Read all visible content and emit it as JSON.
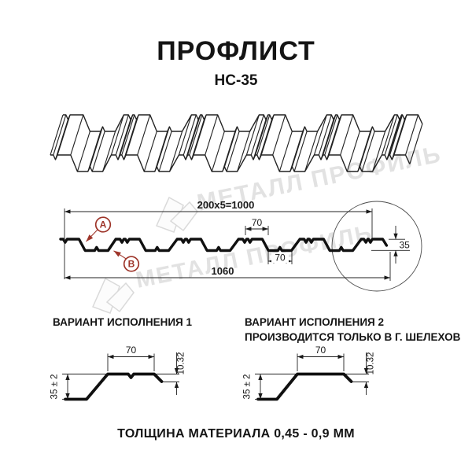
{
  "header": {
    "title": "ПРОФЛИСТ",
    "subtitle": "НС-35"
  },
  "watermark": {
    "brand_text": "МЕТАЛЛ ПРОФИЛЬ"
  },
  "profile_drawing": {
    "dim_coverage": "200x5=1000",
    "dim_overall_width": "1060",
    "dim_height": "35",
    "dim_rib_top_width": "70",
    "dim_rib_bottom_width": "70",
    "marker_a": "A",
    "marker_b": "B"
  },
  "variants": [
    {
      "title": "ВАРИАНТ ИСПОЛНЕНИЯ 1",
      "note": "",
      "dim_width": "70",
      "dim_height_tol": "35 ± 2",
      "dim_lip": "10.32"
    },
    {
      "title": "ВАРИАНТ ИСПОЛНЕНИЯ 2",
      "note": "ПРОИЗВОДИТСЯ ТОЛЬКО В Г. ШЕЛЕХОВ",
      "dim_width": "70",
      "dim_height_tol": "35 ± 2",
      "dim_lip": "10.32"
    }
  ],
  "footer": {
    "material_thickness": "ТОЛЩИНА МАТЕРИАЛА 0,45 - 0,9 ММ"
  },
  "colors": {
    "accent": "#9e352a",
    "line": "#1a1a1a",
    "dim_line": "#222222",
    "watermark": "#e2e2e2"
  }
}
